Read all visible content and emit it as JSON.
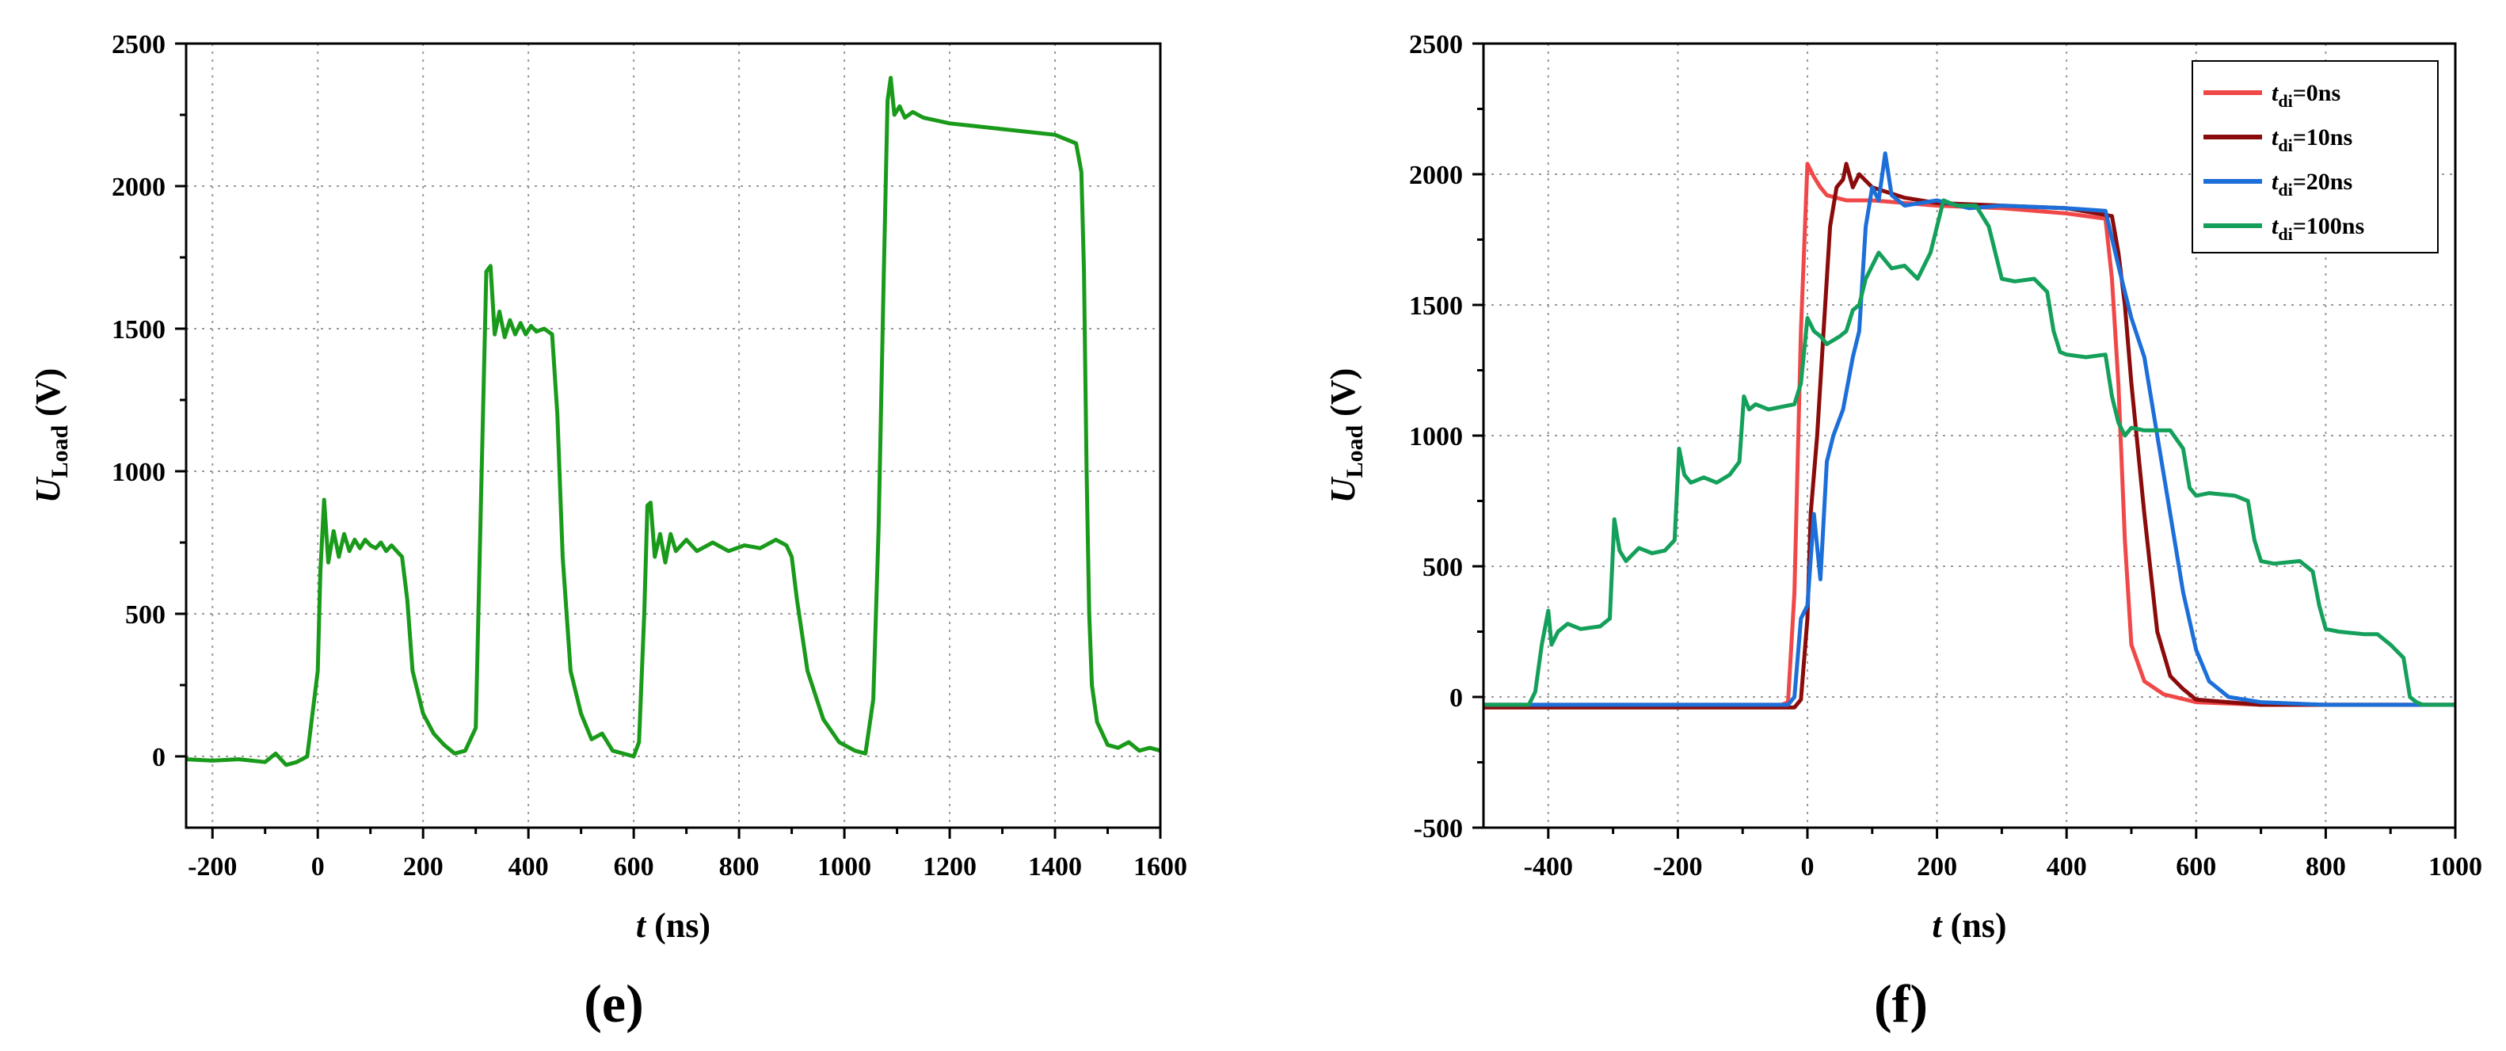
{
  "chart_data": [
    {
      "id": "e",
      "type": "line",
      "panel_label": "(e)",
      "xlabel_main": "t",
      "xlabel_rest": " (ns)",
      "ylabel_main": "U",
      "ylabel_sub": "Load",
      "ylabel_rest": " (V)",
      "xlim": [
        -250,
        1600
      ],
      "ylim": [
        -250,
        2500
      ],
      "xticks": [
        -200,
        0,
        200,
        400,
        600,
        800,
        1000,
        1200,
        1400,
        1600
      ],
      "xtick_labels": [
        "-200",
        "0",
        "200",
        "400",
        "600",
        "800",
        "1000",
        "1200",
        "1400",
        "1600"
      ],
      "yticks": [
        0,
        500,
        1000,
        1500,
        2000,
        2500
      ],
      "ytick_labels": [
        "0",
        "500",
        "1000",
        "1500",
        "2000",
        "2500"
      ],
      "grid": true,
      "legend": null,
      "series": [
        {
          "color": "#1a9a1a",
          "x": [
            -250,
            -200,
            -150,
            -100,
            -80,
            -60,
            -40,
            -20,
            0,
            5,
            12,
            20,
            30,
            40,
            50,
            60,
            70,
            80,
            90,
            100,
            110,
            120,
            130,
            140,
            150,
            160,
            170,
            180,
            200,
            220,
            240,
            260,
            280,
            300,
            310,
            320,
            328,
            336,
            345,
            355,
            365,
            375,
            385,
            395,
            405,
            415,
            430,
            445,
            455,
            465,
            480,
            500,
            520,
            540,
            560,
            580,
            600,
            610,
            620,
            626,
            632,
            640,
            650,
            660,
            670,
            680,
            700,
            720,
            750,
            780,
            810,
            840,
            870,
            890,
            900,
            910,
            930,
            960,
            990,
            1020,
            1040,
            1055,
            1065,
            1075,
            1082,
            1088,
            1095,
            1105,
            1115,
            1130,
            1150,
            1200,
            1250,
            1300,
            1350,
            1400,
            1440,
            1450,
            1455,
            1460,
            1465,
            1470,
            1480,
            1490,
            1500,
            1520,
            1540,
            1560,
            1580,
            1600
          ],
          "y": [
            -10,
            -15,
            -10,
            -20,
            10,
            -30,
            -20,
            0,
            300,
            650,
            900,
            680,
            790,
            700,
            780,
            720,
            760,
            730,
            760,
            740,
            730,
            750,
            720,
            740,
            720,
            700,
            550,
            300,
            150,
            80,
            40,
            10,
            20,
            100,
            900,
            1700,
            1720,
            1480,
            1560,
            1470,
            1530,
            1480,
            1520,
            1480,
            1510,
            1490,
            1500,
            1480,
            1200,
            700,
            300,
            150,
            60,
            80,
            20,
            10,
            0,
            50,
            500,
            880,
            890,
            700,
            780,
            680,
            780,
            720,
            760,
            720,
            750,
            720,
            740,
            730,
            760,
            740,
            700,
            550,
            300,
            130,
            50,
            20,
            10,
            200,
            800,
            1700,
            2300,
            2380,
            2250,
            2280,
            2240,
            2260,
            2240,
            2220,
            2210,
            2200,
            2190,
            2180,
            2150,
            2050,
            1700,
            1000,
            500,
            250,
            120,
            80,
            40,
            30,
            50,
            20,
            30,
            20
          ]
        }
      ]
    },
    {
      "id": "f",
      "type": "line",
      "panel_label": "(f)",
      "xlabel_main": "t",
      "xlabel_rest": " (ns)",
      "ylabel_main": "U",
      "ylabel_sub": "Load",
      "ylabel_rest": " (V)",
      "xlim": [
        -500,
        1000
      ],
      "ylim": [
        -500,
        2500
      ],
      "xticks": [
        -400,
        -200,
        0,
        200,
        400,
        600,
        800,
        1000
      ],
      "xtick_labels": [
        "-400",
        "-200",
        "0",
        "200",
        "400",
        "600",
        "800",
        "1000"
      ],
      "yticks": [
        -500,
        0,
        500,
        1000,
        1500,
        2000,
        2500
      ],
      "ytick_labels": [
        "-500",
        "0",
        "500",
        "1000",
        "1500",
        "2000",
        "2500"
      ],
      "grid": true,
      "legend": "top-right",
      "series": [
        {
          "name_main": "t",
          "name_sub": "di",
          "name_rest": "=0ns",
          "color": "#f04848",
          "x": [
            -500,
            -400,
            -300,
            -200,
            -100,
            -40,
            -30,
            -20,
            -10,
            0,
            10,
            20,
            30,
            60,
            100,
            200,
            300,
            400,
            460,
            470,
            480,
            490,
            500,
            520,
            550,
            600,
            700,
            800,
            900,
            1000
          ],
          "y": [
            -30,
            -30,
            -30,
            -30,
            -30,
            -30,
            -20,
            400,
            1400,
            2040,
            1990,
            1950,
            1920,
            1900,
            1900,
            1880,
            1870,
            1850,
            1830,
            1600,
            1200,
            600,
            200,
            60,
            10,
            -20,
            -30,
            -30,
            -30,
            -30
          ]
        },
        {
          "name_main": "t",
          "name_sub": "di",
          "name_rest": "=10ns",
          "color": "#8b0b0b",
          "x": [
            -500,
            -400,
            -300,
            -200,
            -100,
            -20,
            -10,
            0,
            5,
            15,
            25,
            35,
            45,
            55,
            60,
            70,
            80,
            100,
            150,
            200,
            300,
            400,
            470,
            480,
            490,
            500,
            520,
            540,
            560,
            580,
            600,
            700,
            800,
            900,
            1000
          ],
          "y": [
            -40,
            -40,
            -40,
            -40,
            -40,
            -40,
            -10,
            300,
            700,
            1000,
            1400,
            1800,
            1950,
            1980,
            2040,
            1950,
            2000,
            1950,
            1910,
            1890,
            1880,
            1870,
            1840,
            1700,
            1500,
            1200,
            700,
            250,
            80,
            30,
            -10,
            -30,
            -30,
            -30,
            -30
          ]
        },
        {
          "name_main": "t",
          "name_sub": "di",
          "name_rest": "=20ns",
          "color": "#1c6fd8",
          "x": [
            -500,
            -300,
            -100,
            -30,
            -20,
            -10,
            0,
            10,
            20,
            30,
            40,
            55,
            70,
            80,
            90,
            100,
            110,
            120,
            130,
            150,
            200,
            250,
            300,
            400,
            460,
            480,
            500,
            520,
            540,
            560,
            580,
            600,
            620,
            650,
            700,
            800,
            900,
            1000
          ],
          "y": [
            -30,
            -30,
            -30,
            -30,
            0,
            300,
            350,
            700,
            450,
            900,
            1000,
            1100,
            1300,
            1400,
            1800,
            1950,
            1900,
            2080,
            1920,
            1880,
            1900,
            1870,
            1880,
            1870,
            1860,
            1650,
            1450,
            1300,
            1000,
            700,
            400,
            180,
            60,
            0,
            -20,
            -30,
            -30,
            -30
          ]
        },
        {
          "name_main": "t",
          "name_sub": "di",
          "name_rest": "=100ns",
          "color": "#14a05a",
          "x": [
            -500,
            -460,
            -430,
            -420,
            -410,
            -400,
            -395,
            -385,
            -370,
            -350,
            -320,
            -305,
            -298,
            -290,
            -280,
            -260,
            -240,
            -220,
            -205,
            -198,
            -190,
            -180,
            -160,
            -140,
            -120,
            -105,
            -98,
            -90,
            -80,
            -60,
            -40,
            -20,
            -10,
            0,
            10,
            20,
            30,
            50,
            60,
            70,
            80,
            90,
            100,
            110,
            130,
            150,
            170,
            190,
            210,
            230,
            260,
            280,
            300,
            320,
            350,
            370,
            380,
            390,
            400,
            430,
            460,
            470,
            480,
            490,
            500,
            520,
            560,
            580,
            590,
            600,
            620,
            660,
            680,
            690,
            700,
            720,
            760,
            780,
            790,
            800,
            820,
            860,
            880,
            900,
            920,
            930,
            940,
            950,
            970,
            1000
          ],
          "y": [
            -30,
            -30,
            -30,
            20,
            200,
            330,
            200,
            250,
            280,
            260,
            270,
            300,
            680,
            560,
            520,
            570,
            550,
            560,
            600,
            950,
            850,
            820,
            840,
            820,
            850,
            900,
            1150,
            1100,
            1120,
            1100,
            1110,
            1120,
            1200,
            1450,
            1400,
            1380,
            1350,
            1380,
            1400,
            1480,
            1500,
            1600,
            1650,
            1700,
            1640,
            1650,
            1600,
            1700,
            1900,
            1880,
            1880,
            1800,
            1600,
            1590,
            1600,
            1550,
            1400,
            1320,
            1310,
            1300,
            1310,
            1150,
            1050,
            1000,
            1030,
            1020,
            1020,
            950,
            800,
            770,
            780,
            770,
            750,
            600,
            520,
            510,
            520,
            480,
            350,
            260,
            250,
            240,
            240,
            200,
            150,
            0,
            -20,
            -30,
            -30,
            -30
          ]
        }
      ]
    }
  ]
}
